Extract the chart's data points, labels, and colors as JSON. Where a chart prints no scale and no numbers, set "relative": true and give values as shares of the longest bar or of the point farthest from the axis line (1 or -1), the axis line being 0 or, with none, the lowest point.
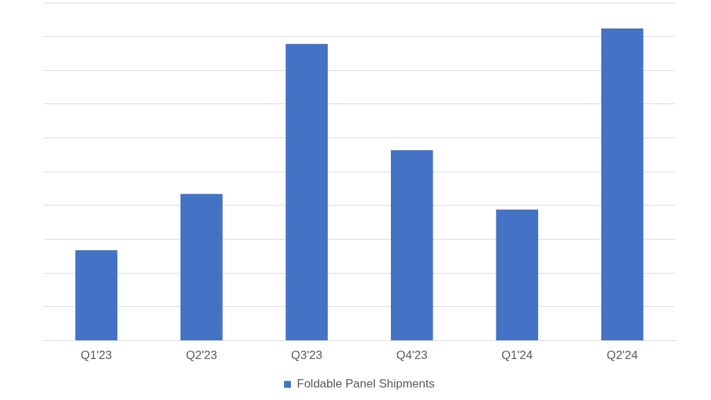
{
  "chart_data": {
    "type": "bar",
    "categories": [
      "Q1'23",
      "Q2'23",
      "Q3'23",
      "Q4'23",
      "Q1'24",
      "Q2'24"
    ],
    "series": [
      {
        "name": "Foldable Panel Shipments",
        "color": "#4472c4",
        "values": [
          0.29,
          0.47,
          0.95,
          0.61,
          0.42,
          1
        ]
      }
    ],
    "relative": true,
    "grid": "y",
    "legend": "bottom"
  }
}
